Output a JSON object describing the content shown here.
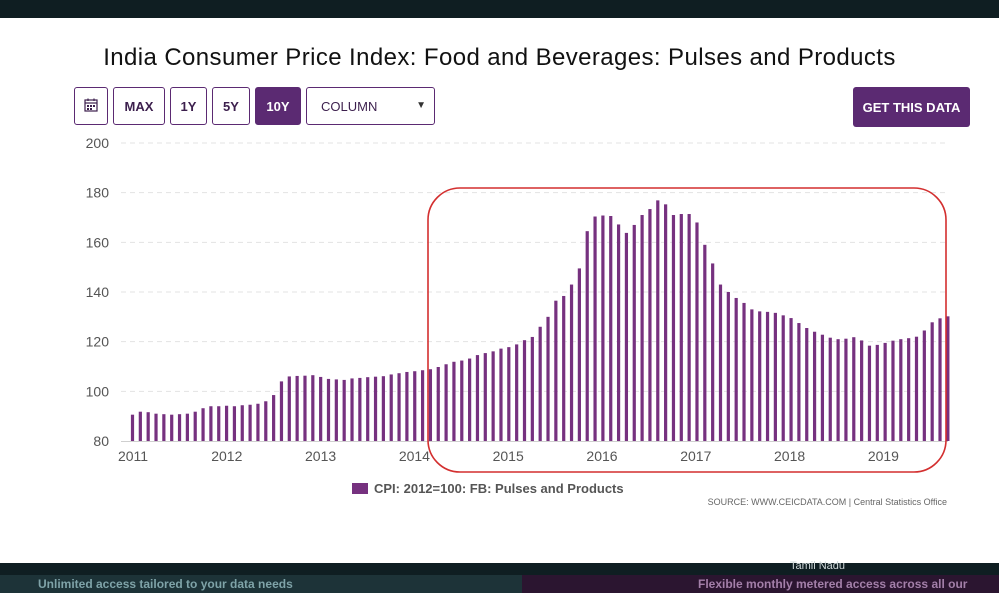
{
  "title": "India Consumer Price Index: Food and Beverages: Pulses and Products",
  "toolbar": {
    "calendar_icon": "calendar-icon",
    "ranges": [
      "MAX",
      "1Y",
      "5Y",
      "10Y"
    ],
    "active_range": "10Y",
    "chart_type": "COLUMN",
    "get_data_label": "GET THIS DATA"
  },
  "source": "SOURCE: WWW.CEICDATA.COM | Central Statistics Office",
  "colors": {
    "accent": "#5b2a72",
    "bar": "#76317f",
    "highlight": "#d32f2f"
  },
  "bottom": {
    "left": "Unlimited access tailored to your data needs",
    "right": "Flexible monthly metered access across all our",
    "bg_label": "Tamil Nadu"
  },
  "chart_data": {
    "type": "bar",
    "ylim": [
      80,
      200
    ],
    "yticks": [
      80,
      100,
      120,
      140,
      160,
      180,
      200
    ],
    "xticks": [
      "2011",
      "2012",
      "2013",
      "2014",
      "2015",
      "2016",
      "2017",
      "2018",
      "2019"
    ],
    "grid": true,
    "legend": "bottom-center",
    "highlight": "rounded box around 2014–2019",
    "series": [
      {
        "name": "CPI: 2012=100: FB: Pulses and Products",
        "values": [
          90.6,
          91.8,
          91.6,
          91.0,
          90.8,
          90.6,
          90.8,
          91.0,
          91.8,
          93.2,
          94.0,
          94.0,
          94.2,
          94.0,
          94.4,
          94.6,
          95.0,
          96.0,
          98.5,
          104.0,
          106.0,
          106.2,
          106.3,
          106.5,
          105.8,
          105.0,
          104.8,
          104.6,
          105.2,
          105.4,
          105.7,
          105.9,
          106.1,
          106.8,
          107.3,
          107.8,
          108.1,
          108.5,
          108.9,
          109.8,
          110.9,
          111.9,
          112.4,
          113.2,
          114.6,
          115.4,
          116.1,
          117.2,
          117.8,
          118.9,
          120.6,
          121.9,
          126.0,
          130.0,
          136.5,
          138.4,
          143.0,
          149.5,
          164.5,
          170.4,
          170.8,
          170.6,
          167.2,
          163.8,
          167.0,
          171.0,
          173.4,
          176.9,
          175.3,
          171.0,
          171.4,
          171.4,
          168.0,
          159.0,
          151.5,
          143.0,
          140.0,
          137.6,
          135.6,
          133.0,
          132.2,
          132.0,
          131.6,
          130.6,
          129.5,
          127.5,
          125.5,
          124.0,
          122.8,
          121.6,
          121.0,
          121.2,
          121.8,
          120.5,
          118.4,
          118.7,
          119.5,
          120.4,
          121.0,
          121.4,
          122.0,
          124.5,
          127.8,
          129.4,
          130.2
        ]
      }
    ]
  }
}
